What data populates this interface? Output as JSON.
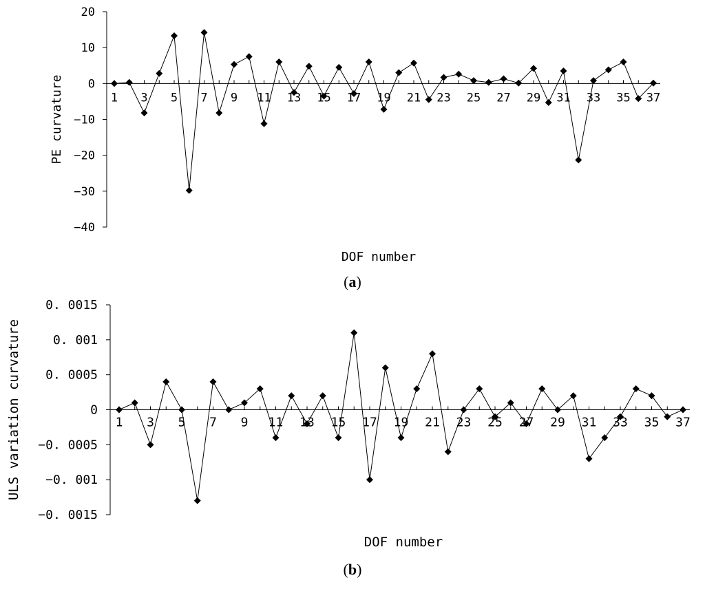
{
  "chart_data": [
    {
      "type": "line",
      "panel_label": "a",
      "xlabel": "DOF number",
      "ylabel": "PE curvature",
      "ylim": [
        -40,
        20
      ],
      "yticks": [
        20,
        10,
        0,
        -10,
        -20,
        -30,
        -40
      ],
      "ytick_labels": [
        "20",
        "10",
        "0",
        "−10",
        "−20",
        "−30",
        "−40"
      ],
      "x": [
        1,
        2,
        3,
        4,
        5,
        6,
        7,
        8,
        9,
        10,
        11,
        12,
        13,
        14,
        15,
        16,
        17,
        18,
        19,
        20,
        21,
        22,
        23,
        24,
        25,
        26,
        27,
        28,
        29,
        30,
        31,
        32,
        33,
        34,
        35,
        36,
        37
      ],
      "xtick_labels": [
        "1",
        "3",
        "5",
        "7",
        "9",
        "11",
        "13",
        "15",
        "17",
        "19",
        "21",
        "23",
        "25",
        "27",
        "29",
        "31",
        "33",
        "35",
        "37"
      ],
      "xtick_values": [
        1,
        3,
        5,
        7,
        9,
        11,
        13,
        15,
        17,
        19,
        21,
        23,
        25,
        27,
        29,
        31,
        33,
        35,
        37
      ],
      "grid": false,
      "series": [
        {
          "marker": "diamond",
          "color": "#000000",
          "values": [
            0,
            0.3,
            -8.2,
            2.8,
            13.3,
            -29.8,
            14.2,
            -8.2,
            5.3,
            7.5,
            -11.2,
            6.0,
            -2.5,
            4.8,
            -3.5,
            4.5,
            -2.8,
            6.0,
            -7.2,
            3.0,
            5.7,
            -4.5,
            1.7,
            2.6,
            0.8,
            0.3,
            1.3,
            0.1,
            4.2,
            -5.3,
            3.5,
            -21.3,
            0.8,
            3.8,
            6.0,
            -4.2,
            0.1
          ]
        }
      ]
    },
    {
      "type": "line",
      "panel_label": "b",
      "xlabel": "DOF number",
      "ylabel": "ULS variation curvature",
      "ylim": [
        -0.0015,
        0.0015
      ],
      "yticks": [
        0.0015,
        0.001,
        0.0005,
        0,
        -0.0005,
        -0.001,
        -0.0015
      ],
      "ytick_labels": [
        "0. 0015",
        "0. 001",
        "0. 0005",
        "0",
        "−0. 0005",
        "−0. 001",
        "−0. 0015"
      ],
      "x": [
        1,
        2,
        3,
        4,
        5,
        6,
        7,
        8,
        9,
        10,
        11,
        12,
        13,
        14,
        15,
        16,
        17,
        18,
        19,
        20,
        21,
        22,
        23,
        24,
        25,
        26,
        27,
        28,
        29,
        30,
        31,
        32,
        33,
        34,
        35,
        36,
        37
      ],
      "xtick_labels": [
        "1",
        "3",
        "5",
        "7",
        "9",
        "11",
        "13",
        "15",
        "17",
        "19",
        "21",
        "23",
        "25",
        "27",
        "29",
        "31",
        "33",
        "35",
        "37"
      ],
      "xtick_values": [
        1,
        3,
        5,
        7,
        9,
        11,
        13,
        15,
        17,
        19,
        21,
        23,
        25,
        27,
        29,
        31,
        33,
        35,
        37
      ],
      "grid": false,
      "series": [
        {
          "marker": "diamond",
          "color": "#000000",
          "values": [
            0,
            0.0001,
            -0.0005,
            0.0004,
            0,
            -0.0013,
            0.0004,
            0,
            0.0001,
            0.0003,
            -0.0004,
            0.0002,
            -0.0002,
            0.0002,
            -0.0004,
            0.0011,
            -0.001,
            0.0006,
            -0.0004,
            0.0003,
            0.0008,
            -0.0006,
            0,
            0.0003,
            -0.0001,
            0.0001,
            -0.0002,
            0.0003,
            0,
            0.0002,
            -0.0007,
            -0.0004,
            -0.0001,
            0.0003,
            0.0002,
            -0.0001,
            0
          ]
        }
      ]
    }
  ]
}
